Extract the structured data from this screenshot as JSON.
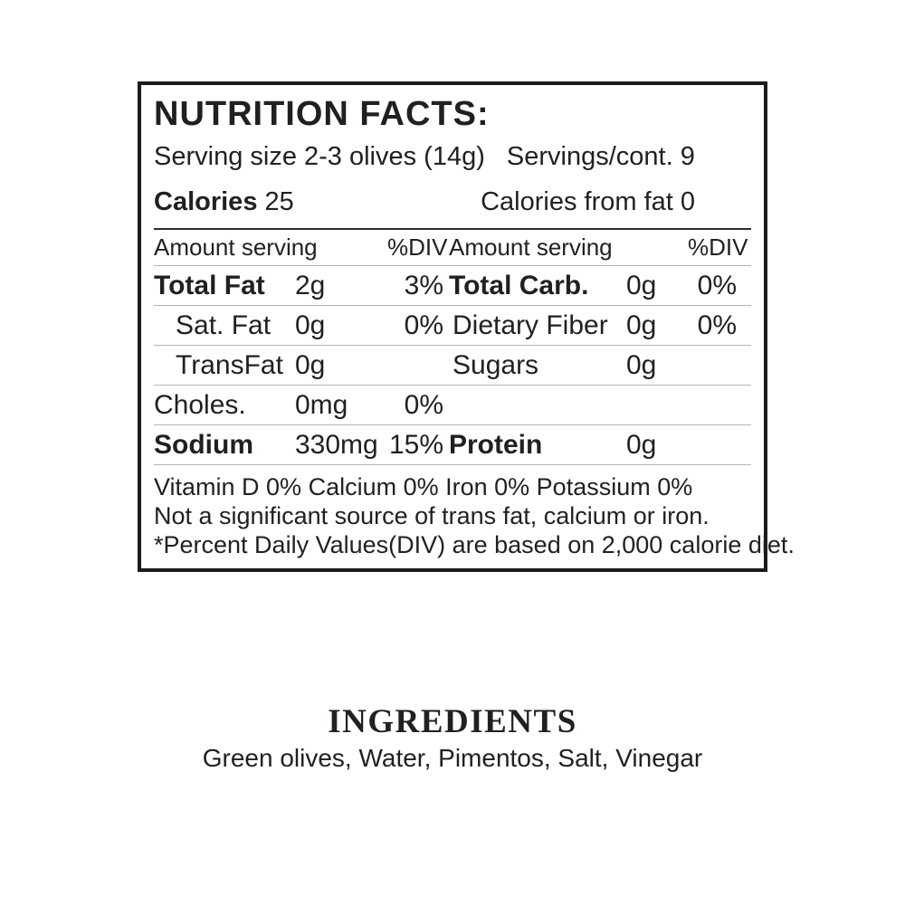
{
  "nutrition": {
    "title": "NUTRITION FACTS:",
    "serving_size": "Serving size 2-3 olives (14g)",
    "servings_per_container": "Servings/cont. 9",
    "calories_label": "Calories",
    "calories_value": "25",
    "calories_from_fat": "Calories from fat 0",
    "col_header_amount": "Amount serving",
    "col_header_dv": "%DIV",
    "rows": [
      {
        "left": {
          "label": "Total Fat",
          "value": "2g",
          "dv": "3%"
        },
        "right": {
          "label": "Total Carb.",
          "value": "0g",
          "dv": "0%"
        }
      },
      {
        "left": {
          "label": "Sat. Fat",
          "value": "0g",
          "dv": "0%"
        },
        "right": {
          "label": "Dietary Fiber",
          "value": "0g",
          "dv": "0%"
        }
      },
      {
        "left": {
          "label": "TransFat",
          "value": "0g",
          "dv": ""
        },
        "right": {
          "label": "Sugars",
          "value": "0g",
          "dv": ""
        }
      },
      {
        "left": {
          "label": "Choles.",
          "value": "0mg",
          "dv": "0%"
        },
        "right": {
          "label": "",
          "value": "",
          "dv": ""
        }
      },
      {
        "left": {
          "label": "Sodium",
          "value": "330mg",
          "dv": "15%"
        },
        "right": {
          "label": "Protein",
          "value": "0g",
          "dv": ""
        }
      }
    ],
    "micronutrients_line": "Vitamin D 0% Calcium 0% Iron 0% Potassium 0%",
    "not_significant_line": "Not a significant source of trans fat, calcium or iron.",
    "daily_values_note": "*Percent Daily Values(DIV) are based on 2,000 calorie diet."
  },
  "ingredients": {
    "title": "INGREDIENTS",
    "list": "Green olives, Water, Pimentos, Salt, Vinegar"
  },
  "colors": {
    "text": "#231f20",
    "border": "#1c1c1c",
    "rule_light": "#b5b5b5",
    "rule_dark": "#2a2a2a",
    "background": "#ffffff"
  }
}
